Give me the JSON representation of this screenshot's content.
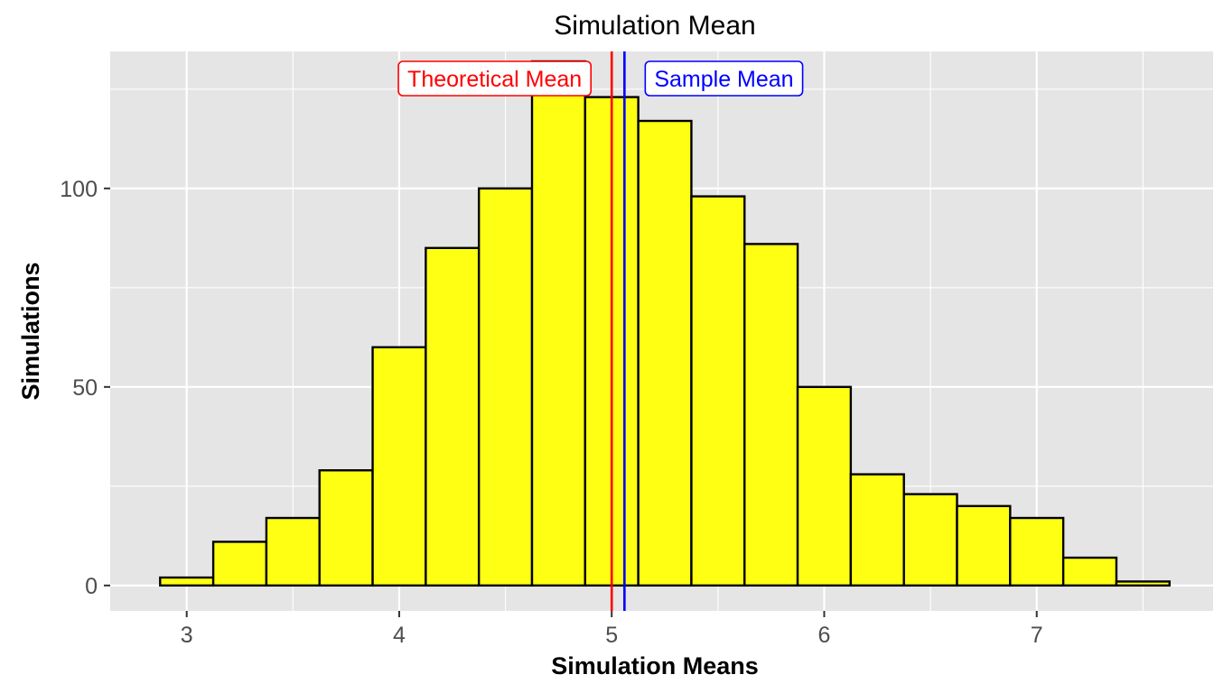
{
  "chart_data": {
    "type": "histogram",
    "title": "Simulation Mean",
    "xlabel": "Simulation Means",
    "ylabel": "Simulations",
    "xlim": [
      2.64,
      7.83
    ],
    "ylim": [
      -6.4,
      134.5
    ],
    "x_ticks": [
      3,
      4,
      5,
      6,
      7
    ],
    "x_tick_labels": [
      "3",
      "4",
      "5",
      "6",
      "7"
    ],
    "x_minor_ticks": [
      3.5,
      4.5,
      5.5,
      6.5,
      7.5
    ],
    "y_ticks": [
      0,
      50,
      100
    ],
    "y_tick_labels": [
      "0",
      "50",
      "100"
    ],
    "y_minor_ticks": [
      25,
      75,
      125
    ],
    "grid": true,
    "bin_width": 0.25,
    "bins": [
      {
        "start": 2.875,
        "end": 3.125,
        "count": 2
      },
      {
        "start": 3.125,
        "end": 3.375,
        "count": 11
      },
      {
        "start": 3.375,
        "end": 3.625,
        "count": 17
      },
      {
        "start": 3.625,
        "end": 3.875,
        "count": 29
      },
      {
        "start": 3.875,
        "end": 4.125,
        "count": 60
      },
      {
        "start": 4.125,
        "end": 4.375,
        "count": 85
      },
      {
        "start": 4.375,
        "end": 4.625,
        "count": 100
      },
      {
        "start": 4.625,
        "end": 4.875,
        "count": 132
      },
      {
        "start": 4.875,
        "end": 5.125,
        "count": 123
      },
      {
        "start": 5.125,
        "end": 5.375,
        "count": 117
      },
      {
        "start": 5.375,
        "end": 5.625,
        "count": 98
      },
      {
        "start": 5.625,
        "end": 5.875,
        "count": 86
      },
      {
        "start": 5.875,
        "end": 6.125,
        "count": 50
      },
      {
        "start": 6.125,
        "end": 6.375,
        "count": 28
      },
      {
        "start": 6.375,
        "end": 6.625,
        "count": 23
      },
      {
        "start": 6.625,
        "end": 6.875,
        "count": 20
      },
      {
        "start": 6.875,
        "end": 7.125,
        "count": 17
      },
      {
        "start": 7.125,
        "end": 7.375,
        "count": 7
      },
      {
        "start": 7.375,
        "end": 7.625,
        "count": 1
      }
    ],
    "reference_lines": [
      {
        "name": "theoretical-mean",
        "label": "Theoretical Mean",
        "value": 5.0,
        "color": "#ff0000",
        "label_side": "left"
      },
      {
        "name": "sample-mean",
        "label": "Sample Mean",
        "value": 5.06,
        "color": "#0000ff",
        "label_side": "right"
      }
    ],
    "colors": {
      "bar_fill": "#ffff14",
      "bar_stroke": "#000000",
      "panel_bg": "#e5e5e5",
      "grid": "#ffffff"
    }
  }
}
